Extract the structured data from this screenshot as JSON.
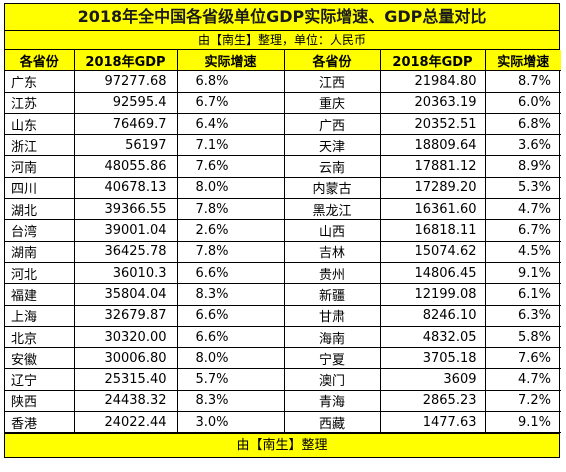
{
  "title": "2018年全中国各省级单位GDP实际增速、GDP总量对比",
  "subtitle": "由【南生】整理，单位：人民币",
  "headers": [
    "各省份",
    "2018年GDP",
    "实际增速",
    "各省份",
    "2018年GDP",
    "实际增速"
  ],
  "rows": [
    [
      "广东",
      "97277.68",
      "6.8%",
      "江西",
      "21984.80",
      "8.7%"
    ],
    [
      "江苏",
      "92595.4",
      "6.7%",
      "重庆",
      "20363.19",
      "6.0%"
    ],
    [
      "山东",
      "76469.7",
      "6.4%",
      "广西",
      "20352.51",
      "6.8%"
    ],
    [
      "浙江",
      "56197",
      "7.1%",
      "天津",
      "18809.64",
      "3.6%"
    ],
    [
      "河南",
      "48055.86",
      "7.6%",
      "云南",
      "17881.12",
      "8.9%"
    ],
    [
      "四川",
      "40678.13",
      "8.0%",
      "内蒙古",
      "17289.20",
      "5.3%"
    ],
    [
      "湖北",
      "39366.55",
      "7.8%",
      "黑龙江",
      "16361.60",
      "4.7%"
    ],
    [
      "台湾",
      "39001.04",
      "2.6%",
      "山西",
      "16818.11",
      "6.7%"
    ],
    [
      "湖南",
      "36425.78",
      "7.8%",
      "吉林",
      "15074.62",
      "4.5%"
    ],
    [
      "河北",
      "36010.3",
      "6.6%",
      "贵州",
      "14806.45",
      "9.1%"
    ],
    [
      "福建",
      "35804.04",
      "8.3%",
      "新疆",
      "12199.08",
      "6.1%"
    ],
    [
      "上海",
      "32679.87",
      "6.6%",
      "甘肃",
      "8246.10",
      "6.3%"
    ],
    [
      "北京",
      "30320.00",
      "6.6%",
      "海南",
      "4832.05",
      "5.8%"
    ],
    [
      "安徽",
      "30006.80",
      "8.0%",
      "宁夏",
      "3705.18",
      "7.6%"
    ],
    [
      "辽宁",
      "25315.40",
      "5.7%",
      "澳门",
      "3609",
      "4.7%"
    ],
    [
      "陕西",
      "24438.32",
      "8.3%",
      "青海",
      "2865.23",
      "7.2%"
    ],
    [
      "香港",
      "24022.44",
      "3.0%",
      "西藏",
      "1477.63",
      "9.1%"
    ]
  ],
  "footer": "由【南生】整理",
  "colors": {
    "header_bg": "#ffff00",
    "border": "#000000"
  }
}
